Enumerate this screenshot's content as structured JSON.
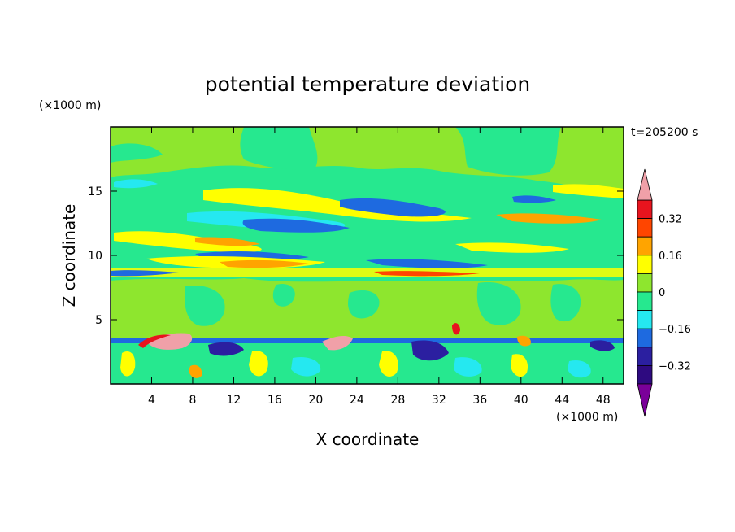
{
  "chart_data": {
    "type": "heatmap",
    "title": "potential temperature deviation",
    "xlabel": "X coordinate",
    "ylabel": "Z coordinate",
    "x_unit": "(×1000 m)",
    "y_unit": "(×1000 m)",
    "time_label": "t=205200 s",
    "xlim": [
      0,
      50
    ],
    "ylim": [
      0,
      20
    ],
    "x_ticks": [
      4,
      8,
      12,
      16,
      20,
      24,
      28,
      32,
      36,
      40,
      44,
      48
    ],
    "y_ticks": [
      5,
      10,
      15
    ],
    "colorbar": {
      "levels": [
        -0.4,
        -0.32,
        -0.24,
        -0.16,
        -0.08,
        0,
        0.08,
        0.16,
        0.24,
        0.32,
        0.4
      ],
      "labels": [
        "0.32",
        "0.16",
        "0",
        "−0.16",
        "−0.32"
      ],
      "label_values": [
        0.32,
        0.16,
        0,
        -0.16,
        -0.32
      ],
      "colors": [
        "#2e0a80",
        "#2b1fa0",
        "#1e6ae0",
        "#25e8f0",
        "#26e88f",
        "#8ee62e",
        "#ffff00",
        "#ffa400",
        "#ff4500",
        "#e8141e",
        "#f0a0a8",
        "#7a0099"
      ],
      "bands": [
        {
          "level_range": [
            0.32,
            0.4
          ],
          "color": "#e8141e"
        },
        {
          "level_range": [
            0.24,
            0.32
          ],
          "color": "#ff4500"
        },
        {
          "level_range": [
            0.16,
            0.24
          ],
          "color": "#ffa400"
        },
        {
          "level_range": [
            0.08,
            0.16
          ],
          "color": "#ffff00"
        },
        {
          "level_range": [
            0,
            0.08
          ],
          "color": "#8ee62e"
        },
        {
          "level_range": [
            -0.08,
            0
          ],
          "color": "#26e88f"
        },
        {
          "level_range": [
            -0.16,
            -0.08
          ],
          "color": "#25e8f0"
        },
        {
          "level_range": [
            -0.24,
            -0.16
          ],
          "color": "#1e6ae0"
        },
        {
          "level_range": [
            -0.32,
            -0.24
          ],
          "color": "#2b1fa0"
        },
        {
          "level_range": [
            -0.4,
            -0.32
          ],
          "color": "#2e0a80"
        }
      ],
      "over_color": "#f0a0a8",
      "under_color": "#7a0099"
    }
  }
}
